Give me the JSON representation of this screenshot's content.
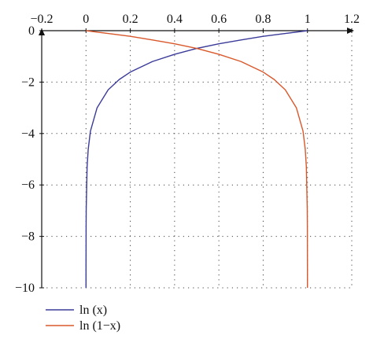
{
  "chart_data": {
    "type": "line",
    "title": "",
    "xlabel": "",
    "ylabel": "",
    "xlim": [
      -0.2,
      1.2
    ],
    "ylim": [
      -10,
      0
    ],
    "x_ticks": [
      -0.2,
      0,
      0.2,
      0.4,
      0.6,
      0.8,
      1,
      1.2
    ],
    "x_tick_labels": [
      "−0.2",
      "0",
      "0.2",
      "0.4",
      "0.6",
      "0.8",
      "1",
      "1.2"
    ],
    "y_ticks": [
      0,
      -2,
      -4,
      -6,
      -8,
      -10
    ],
    "y_tick_labels": [
      "0",
      "−2",
      "−4",
      "−6",
      "−8",
      "−10"
    ],
    "x_axis_position": "top",
    "grid": true,
    "legend": "bottom-left",
    "series": [
      {
        "name": "ln (x)",
        "color": "#3b3b9a",
        "x": [
          4.54e-05,
          0.0001,
          0.0005,
          0.001,
          0.005,
          0.01,
          0.02,
          0.05,
          0.1,
          0.15,
          0.2,
          0.3,
          0.4,
          0.5,
          0.6,
          0.7,
          0.8,
          0.9,
          1.0
        ],
        "y": [
          -10,
          -9.21,
          -7.6,
          -6.91,
          -5.3,
          -4.61,
          -3.91,
          -3.0,
          -2.3,
          -1.9,
          -1.61,
          -1.2,
          -0.92,
          -0.69,
          -0.51,
          -0.36,
          -0.22,
          -0.11,
          0
        ]
      },
      {
        "name": "ln (1−x)",
        "color": "#d9582b",
        "x": [
          0,
          0.1,
          0.2,
          0.3,
          0.4,
          0.5,
          0.6,
          0.7,
          0.8,
          0.85,
          0.9,
          0.95,
          0.98,
          0.99,
          0.995,
          0.999,
          0.9995,
          0.9999,
          0.9999546
        ],
        "y": [
          0,
          -0.11,
          -0.22,
          -0.36,
          -0.51,
          -0.69,
          -0.92,
          -1.2,
          -1.61,
          -1.9,
          -2.3,
          -3.0,
          -3.91,
          -4.61,
          -5.3,
          -6.91,
          -7.6,
          -9.21,
          -10
        ]
      }
    ]
  }
}
